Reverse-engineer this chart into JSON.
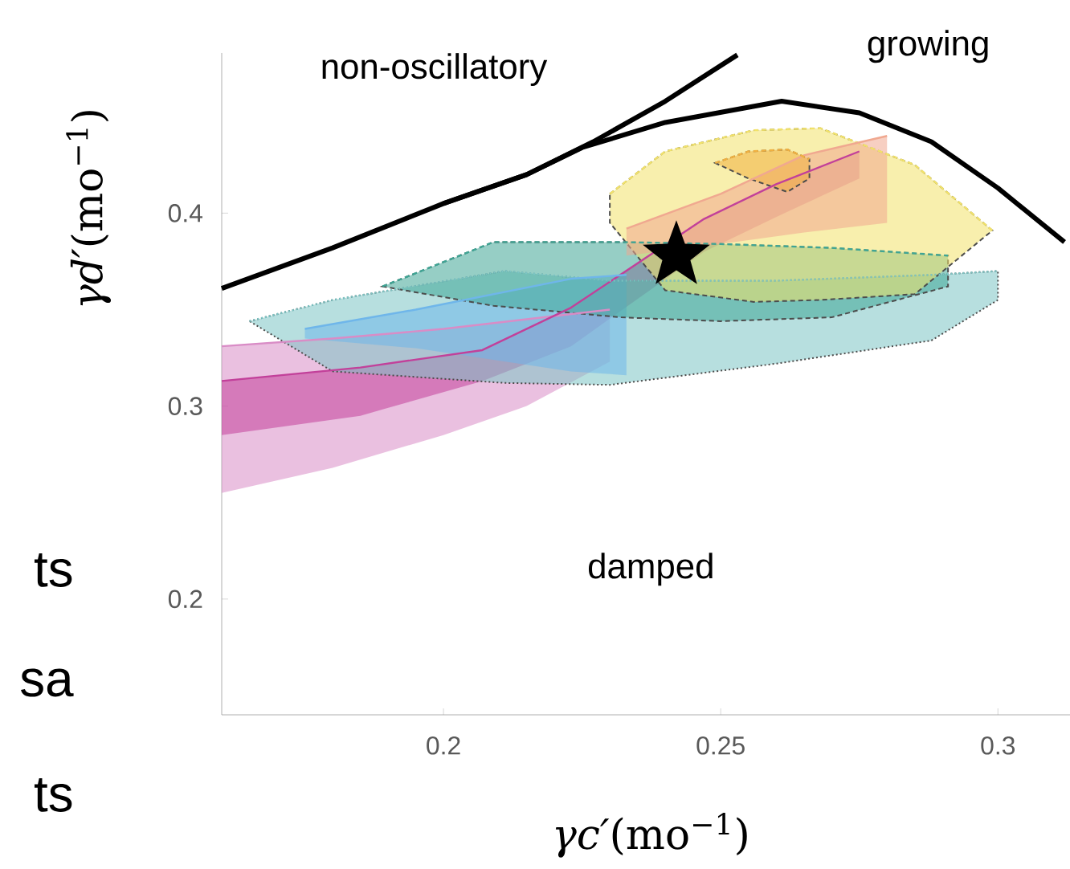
{
  "chart_data": {
    "type": "line",
    "xlabel": "*γc′*(mo$^{−1}$)",
    "ylabel": "*γd′*(mo$^{−1}$)",
    "xlim": [
      0.16,
      0.313
    ],
    "ylim": [
      0.14,
      0.483
    ],
    "xticks": [
      0.2,
      0.25,
      0.3
    ],
    "yticks": [
      0.2,
      0.3,
      0.4
    ],
    "series": [
      {
        "type": "line",
        "color": "#d98cc6",
        "x": [
          0.16,
          0.18,
          0.2,
          0.215,
          0.23
        ],
        "lower": [
          0.255,
          0.268,
          0.285,
          0.3,
          0.323
        ],
        "values": [
          0.331,
          0.335,
          0.34,
          0.345,
          0.35
        ],
        "upper": [
          0.331,
          0.335,
          0.34,
          0.345,
          0.35
        ]
      },
      {
        "type": "line",
        "color": "#c2409a",
        "x": [
          0.16,
          0.185,
          0.207,
          0.223,
          0.247,
          0.26,
          0.275
        ],
        "lower": [
          0.285,
          0.295,
          0.313,
          0.331,
          0.38,
          0.398,
          0.418
        ],
        "values": [
          0.313,
          0.32,
          0.329,
          0.351,
          0.397,
          0.415,
          0.432
        ],
        "upper": [
          0.313,
          0.32,
          0.329,
          0.351,
          0.397,
          0.415,
          0.432
        ]
      },
      {
        "type": "line",
        "color": "#7cc4c4",
        "line_style": "dotted",
        "x": [
          0.165,
          0.18,
          0.211,
          0.23,
          0.26,
          0.288,
          0.3
        ],
        "lower": [
          0.344,
          0.318,
          0.312,
          0.311,
          0.322,
          0.334,
          0.355
        ],
        "values": [
          0.344,
          0.355,
          0.37,
          0.365,
          0.365,
          0.368,
          0.37
        ],
        "upper": [
          0.344,
          0.355,
          0.37,
          0.365,
          0.365,
          0.368,
          0.37
        ]
      },
      {
        "type": "line",
        "color": "#6fb6ea",
        "x": [
          0.175,
          0.195,
          0.223,
          0.233
        ],
        "lower": [
          0.335,
          0.33,
          0.318,
          0.316
        ],
        "values": [
          0.34,
          0.35,
          0.366,
          0.368
        ],
        "upper": [
          0.34,
          0.35,
          0.366,
          0.368
        ]
      },
      {
        "type": "line",
        "color": "#3fa595",
        "line_style": "dashed",
        "x": [
          0.189,
          0.209,
          0.232,
          0.25,
          0.27,
          0.291
        ],
        "lower": [
          0.362,
          0.352,
          0.346,
          0.344,
          0.346,
          0.362
        ],
        "values": [
          0.362,
          0.385,
          0.385,
          0.384,
          0.382,
          0.378
        ],
        "upper": [
          0.362,
          0.385,
          0.385,
          0.384,
          0.382,
          0.378
        ]
      },
      {
        "type": "line",
        "color": "#f2e26a",
        "line_style": "dashed",
        "x": [
          0.23,
          0.24,
          0.256,
          0.268,
          0.285,
          0.299
        ],
        "lower": [
          0.395,
          0.36,
          0.354,
          0.355,
          0.358,
          0.391
        ],
        "values": [
          0.41,
          0.432,
          0.443,
          0.444,
          0.425,
          0.391
        ],
        "upper": [
          0.41,
          0.432,
          0.443,
          0.444,
          0.425,
          0.391
        ]
      },
      {
        "type": "line",
        "color": "#f0a890",
        "x": [
          0.233,
          0.25,
          0.265,
          0.28
        ],
        "lower": [
          0.378,
          0.384,
          0.39,
          0.395
        ],
        "values": [
          0.392,
          0.41,
          0.43,
          0.44
        ],
        "upper": [
          0.392,
          0.41,
          0.43,
          0.44
        ]
      },
      {
        "type": "line",
        "color": "#f0b040",
        "line_style": "dashed",
        "x": [
          0.249,
          0.255,
          0.262,
          0.266
        ],
        "lower": [
          0.426,
          0.418,
          0.411,
          0.418
        ],
        "values": [
          0.426,
          0.432,
          0.433,
          0.428
        ],
        "upper": [
          0.426,
          0.432,
          0.433,
          0.428
        ]
      },
      {
        "color": "#000000",
        "x": [
          0.16,
          0.18,
          0.2,
          0.215,
          0.227,
          0.24,
          0.253
        ],
        "values": [
          0.361,
          0.382,
          0.405,
          0.42,
          0.437,
          0.458,
          0.482
        ]
      },
      {
        "color": "#000000",
        "x": [
          0.2,
          0.215,
          0.225,
          0.24,
          0.261,
          0.275,
          0.288,
          0.3,
          0.312
        ],
        "values": [
          0.405,
          0.42,
          0.434,
          0.447,
          0.458,
          0.452,
          0.437,
          0.413,
          0.385
        ]
      },
      {
        "type": "scatter",
        "color": "#000000",
        "marker": "star",
        "x": [
          0.242
        ],
        "values": [
          0.378
        ]
      }
    ],
    "annotations": [
      "non-oscillatory",
      "growing",
      "damped",
      "ts",
      "sa",
      "ts"
    ]
  }
}
